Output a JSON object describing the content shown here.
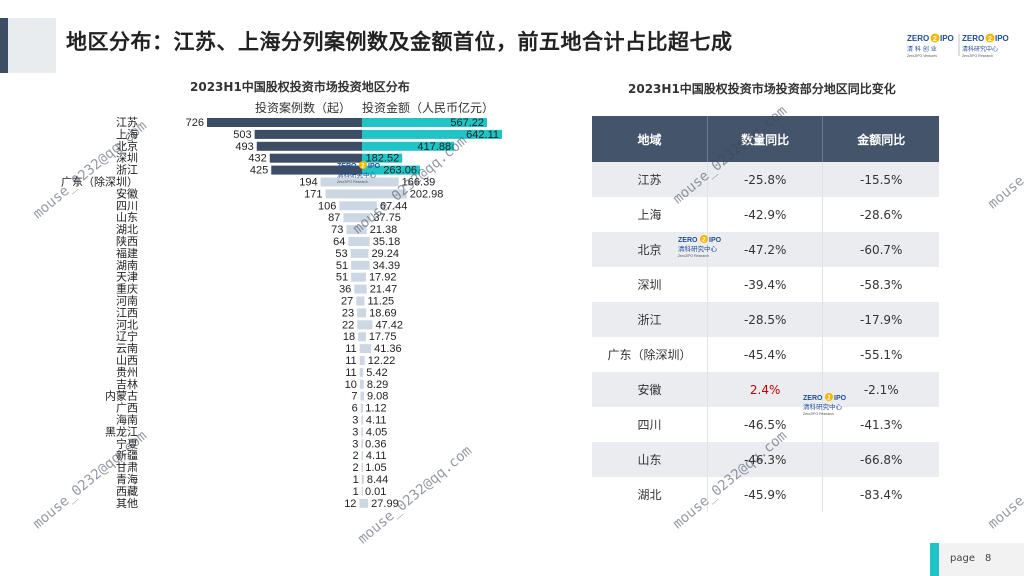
{
  "header": {
    "title": "地区分布：江苏、上海分列案例数及金额首位，前五地合计占比超七成"
  },
  "logo": {
    "left": {
      "top": "ZERO",
      "badge": "2",
      "top2": "IPO",
      "text": "清 科 创 业",
      "sub": "Zero2IPO Ventures"
    },
    "right": {
      "top": "ZERO",
      "badge": "2",
      "top2": "IPO",
      "text": "清科研究中心",
      "sub": "Zero2IPO Research"
    }
  },
  "watermark": "mouse_0232@qq.com",
  "watermark_logo": {
    "top": "ZERO",
    "badge": "2",
    "top2": "IPO",
    "text": "清科研究中心",
    "sub": "Zero2IPO Research"
  },
  "chart_data": [
    {
      "type": "bar",
      "title": "2023H1中国股权投资市场投资地区分布",
      "categories": [
        "江苏",
        "上海",
        "北京",
        "深圳",
        "浙江",
        "广东（除深圳）",
        "安徽",
        "四川",
        "山东",
        "湖北",
        "陕西",
        "福建",
        "湖南",
        "天津",
        "重庆",
        "河南",
        "江西",
        "河北",
        "辽宁",
        "云南",
        "山西",
        "贵州",
        "吉林",
        "内蒙古",
        "广西",
        "海南",
        "黑龙江",
        "宁夏",
        "新疆",
        "甘肃",
        "青海",
        "西藏",
        "其他"
      ],
      "series": [
        {
          "name": "投资案例数（起）",
          "values": [
            726,
            503,
            493,
            432,
            425,
            194,
            171,
            106,
            87,
            73,
            64,
            53,
            51,
            51,
            36,
            27,
            23,
            22,
            18,
            11,
            11,
            11,
            10,
            7,
            6,
            3,
            3,
            3,
            2,
            2,
            1,
            1,
            12
          ]
        },
        {
          "name": "投资金额（人民币亿元）",
          "values": [
            567.22,
            642.11,
            417.88,
            182.52,
            263.06,
            166.39,
            202.98,
            67.44,
            37.75,
            21.38,
            35.18,
            29.24,
            34.39,
            17.92,
            21.47,
            11.25,
            18.69,
            47.42,
            17.75,
            41.36,
            12.22,
            5.42,
            8.29,
            9.08,
            1.12,
            4.11,
            4.05,
            0.36,
            4.11,
            1.05,
            8.44,
            0.01,
            27.99
          ]
        }
      ],
      "colors": {
        "top5_cases": "#3d4d63",
        "top5_amount": "#21c4c6",
        "other": "#cdd7e3"
      },
      "labels": {
        "cases": [
          "726",
          "503",
          "493",
          "432",
          "425",
          "194",
          "171",
          "106",
          "87",
          "73",
          "64",
          "53",
          "51",
          "51",
          "36",
          "27",
          "23",
          "22",
          "18",
          "11",
          "11",
          "11",
          "10",
          "7",
          "6",
          "3",
          "3",
          "3",
          "2",
          "2",
          "1",
          "1",
          "12"
        ],
        "amount": [
          "567.22",
          "642.11",
          "417.88",
          "182.52",
          "263.06",
          "166.39",
          "202.98",
          "67.44",
          "37.75",
          "21.38",
          "35.18",
          "29.24",
          "34.39",
          "17.92",
          "21.47",
          "11.25",
          "18.69",
          "47.42",
          "17.75",
          "41.36",
          "12.22",
          "5.42",
          "8.29",
          "9.08",
          "1.12",
          "4.11",
          "4.05",
          "0.36",
          "4.11",
          "1.05",
          "8.44",
          "0.01",
          "27.99"
        ]
      }
    },
    {
      "type": "table",
      "title": "2023H1中国股权投资市场投资部分地区同比变化",
      "columns": [
        "地域",
        "数量同比",
        "金额同比"
      ],
      "rows": [
        [
          "江苏",
          "-25.8%",
          "-15.5%"
        ],
        [
          "上海",
          "-42.9%",
          "-28.6%"
        ],
        [
          "北京",
          "-47.2%",
          "-60.7%"
        ],
        [
          "深圳",
          "-39.4%",
          "-58.3%"
        ],
        [
          "浙江",
          "-28.5%",
          "-17.9%"
        ],
        [
          "广东（除深圳）",
          "-45.4%",
          "-55.1%"
        ],
        [
          "安徽",
          "2.4%",
          "-2.1%"
        ],
        [
          "四川",
          "-46.5%",
          "-41.3%"
        ],
        [
          "山东",
          "-46.3%",
          "-66.8%"
        ],
        [
          "湖北",
          "-45.9%",
          "-83.4%"
        ]
      ],
      "highlight_color": "#c00000"
    }
  ],
  "footer": {
    "page_label": "page",
    "page_number": "8"
  }
}
